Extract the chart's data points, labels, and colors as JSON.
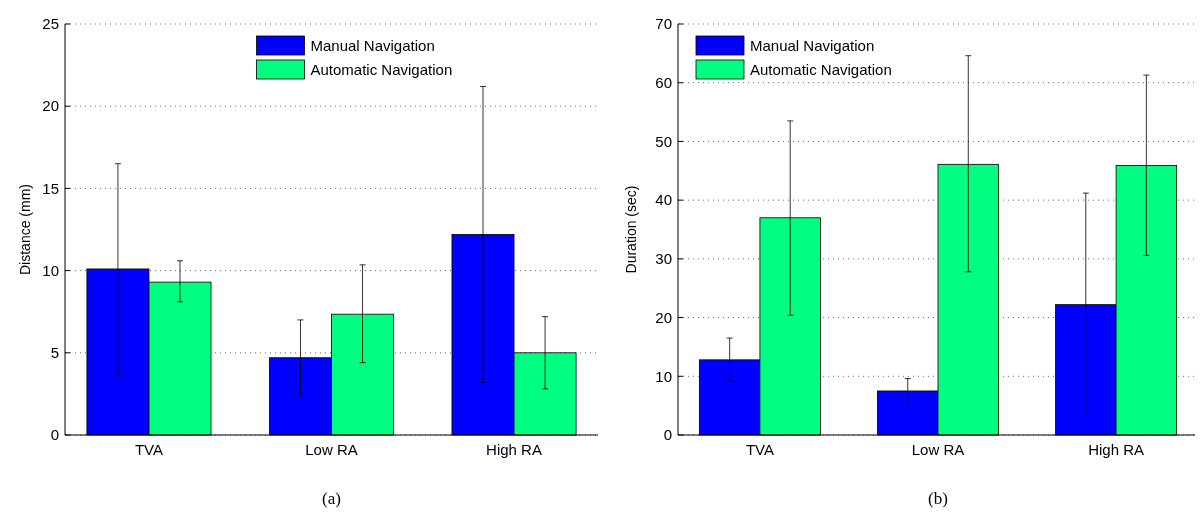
{
  "chart_data": [
    {
      "type": "bar",
      "categories": [
        "TVA",
        "Low RA",
        "High RA"
      ],
      "ylabel": "Distance (mm)",
      "ylim": [
        0,
        25
      ],
      "yticks": [
        0,
        5,
        10,
        15,
        20,
        25
      ],
      "grid": "y",
      "legend": "top",
      "annotations": [
        "(a)"
      ],
      "series": [
        {
          "name": "Manual Navigation",
          "color": "#0000ff",
          "values": [
            10.1,
            4.7,
            12.2
          ],
          "errors": [
            [
              3.7,
              16.5
            ],
            [
              2.5,
              7.0
            ],
            [
              3.2,
              21.2
            ]
          ]
        },
        {
          "name": "Automatic Navigation",
          "color": "#00ff80",
          "values": [
            9.3,
            7.35,
            5.0
          ],
          "errors": [
            [
              8.1,
              10.6
            ],
            [
              4.4,
              10.35
            ],
            [
              2.8,
              7.2
            ]
          ]
        }
      ]
    },
    {
      "type": "bar",
      "categories": [
        "TVA",
        "Low RA",
        "High RA"
      ],
      "ylabel": "Duration (sec)",
      "ylim": [
        0,
        70
      ],
      "yticks": [
        0,
        10,
        20,
        30,
        40,
        50,
        60,
        70
      ],
      "grid": "y",
      "legend": "top left",
      "annotations": [
        "(b)"
      ],
      "series": [
        {
          "name": "Manual Navigation",
          "color": "#0000ff",
          "values": [
            12.8,
            7.5,
            22.2
          ],
          "errors": [
            [
              9.2,
              16.5
            ],
            [
              5.3,
              9.6
            ],
            [
              3.3,
              41.2
            ]
          ]
        },
        {
          "name": "Automatic Navigation",
          "color": "#00ff80",
          "values": [
            37,
            46.1,
            45.9
          ],
          "errors": [
            [
              20.4,
              53.5
            ],
            [
              27.8,
              64.6
            ],
            [
              30.6,
              61.3
            ]
          ]
        }
      ]
    }
  ]
}
